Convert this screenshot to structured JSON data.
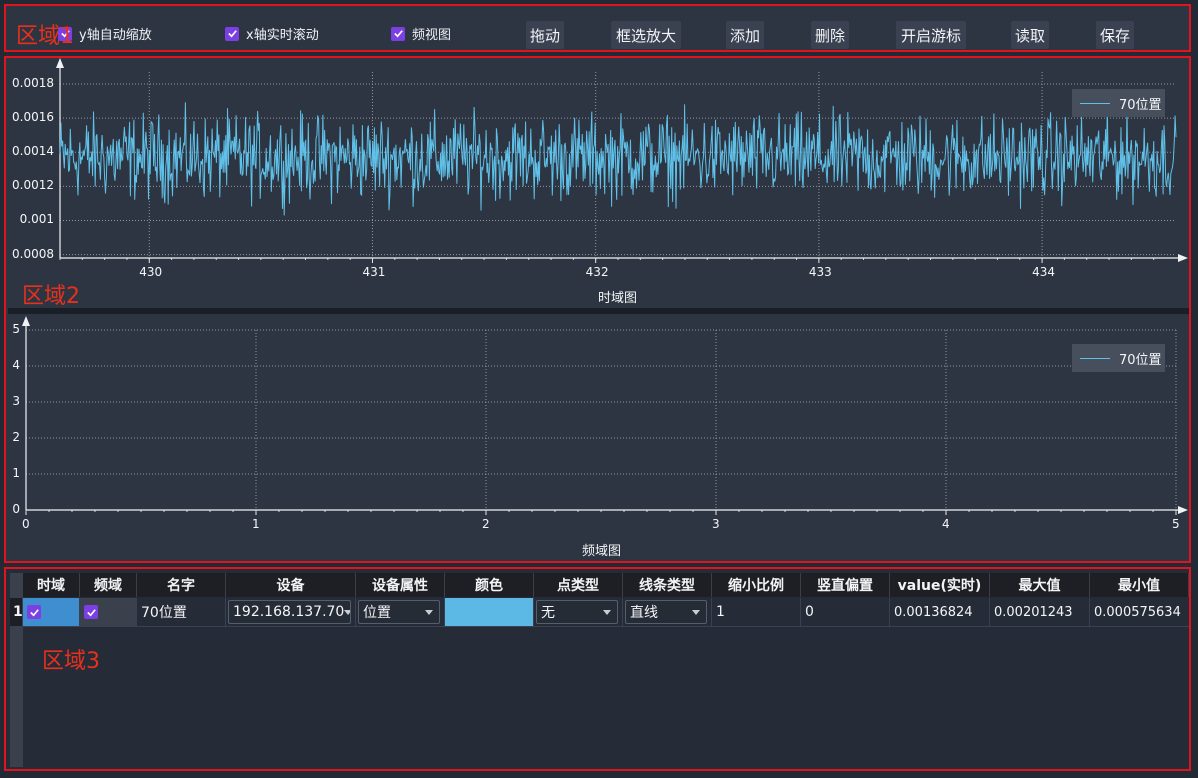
{
  "regions": {
    "r1": "区域1",
    "r2": "区域2",
    "r3": "区域3"
  },
  "toolbar": {
    "checkboxes": [
      {
        "label": "y轴自动缩放",
        "checked": true
      },
      {
        "label": "x轴实时滚动",
        "checked": true
      },
      {
        "label": "频视图",
        "checked": true
      }
    ],
    "buttons": [
      "拖动",
      "框选放大",
      "添加",
      "删除",
      "开启游标",
      "读取",
      "保存"
    ]
  },
  "accent_color": "#7b3fe4",
  "series_color": "#5fc0e8",
  "chart_data": [
    {
      "type": "line",
      "xlabel": "时域图",
      "ylabel": "",
      "xlim": [
        429.6,
        434.6
      ],
      "ylim": [
        0.00078,
        0.00187
      ],
      "xticks": [
        "430",
        "431",
        "432",
        "433",
        "434"
      ],
      "yticks": [
        "0.0008",
        "0.001",
        "0.0012",
        "0.0014",
        "0.0016",
        "0.0018"
      ],
      "grid": true,
      "legend": "top-right",
      "series": [
        {
          "name": "70位置",
          "mean": 0.00137,
          "noise": 0.00015,
          "min": 0.0008,
          "max": 0.00185
        }
      ]
    },
    {
      "type": "line",
      "xlabel": "频域图",
      "ylabel": "",
      "xlim": [
        0,
        5
      ],
      "ylim": [
        0,
        5
      ],
      "xticks": [
        "0",
        "1",
        "2",
        "3",
        "4",
        "5"
      ],
      "yticks": [
        "0",
        "1",
        "2",
        "3",
        "4",
        "5"
      ],
      "grid": true,
      "legend": "top-right",
      "series": [
        {
          "name": "70位置",
          "values": []
        }
      ]
    }
  ],
  "table": {
    "headers": [
      "时域",
      "频域",
      "名字",
      "设备",
      "设备属性",
      "颜色",
      "点类型",
      "线条类型",
      "缩小比例",
      "竖直偏置",
      "value(实时)",
      "最大值",
      "最小值"
    ],
    "rows": [
      {
        "index": "1",
        "time_checked": true,
        "freq_checked": true,
        "name": "70位置",
        "device": "192.168.137.70",
        "attribute": "位置",
        "color": "#5cb8e4",
        "point_type": "无",
        "line_type": "直线",
        "scale": "1",
        "offset": "0",
        "value": "0.00136824",
        "max": "0.00201243",
        "min": "0.000575634"
      }
    ]
  }
}
